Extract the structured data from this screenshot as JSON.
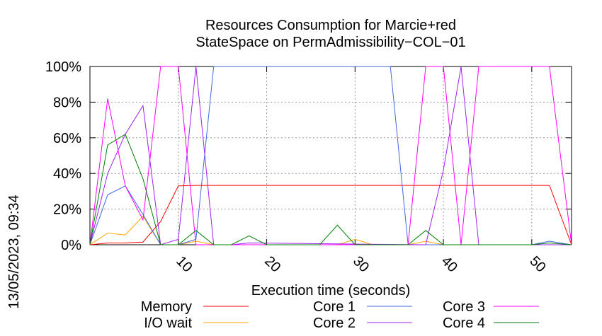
{
  "chart_data": {
    "type": "line",
    "title": [
      "Resources Consumption for Marcie+red",
      "StateSpace on PermAdmissibility−COL−01"
    ],
    "xlabel": "Execution time (seconds)",
    "ylabel": "",
    "xlim": [
      0,
      54.5
    ],
    "ylim": [
      0,
      100
    ],
    "x_ticks": [
      10,
      20,
      30,
      40,
      50
    ],
    "x_tick_labels": [
      "10",
      "20",
      "30",
      "40",
      "50"
    ],
    "y_ticks": [
      0,
      20,
      40,
      60,
      80,
      100
    ],
    "y_tick_labels": [
      "0%",
      "20%",
      "40%",
      "60%",
      "80%",
      "100%"
    ],
    "grid": true,
    "legend_position": "bottom",
    "series": [
      {
        "name": "Memory",
        "color": "#ff0000",
        "x": [
          0,
          2,
          4,
          6,
          8,
          10,
          12,
          14,
          52,
          54.5
        ],
        "y": [
          0,
          1,
          1,
          1.5,
          13,
          33,
          33.3,
          33.3,
          33.3,
          0
        ]
      },
      {
        "name": "I/O wait",
        "color": "#ffa500",
        "x": [
          0,
          2,
          4,
          6,
          8,
          10,
          12,
          14,
          16,
          28,
          30,
          32,
          36,
          38,
          40,
          54.5
        ],
        "y": [
          0,
          6.5,
          5.5,
          16,
          0,
          0,
          2,
          0,
          0,
          0,
          3,
          0,
          0,
          2,
          0,
          0
        ]
      },
      {
        "name": "Core 1",
        "color": "#4169e1",
        "x": [
          0,
          2,
          4,
          6,
          8,
          10,
          12,
          14,
          34,
          36,
          50,
          52,
          54.5
        ],
        "y": [
          0,
          28,
          33,
          17,
          0,
          0,
          3,
          100,
          100,
          0,
          0,
          2,
          0
        ]
      },
      {
        "name": "Core 2",
        "color": "#a020f0",
        "x": [
          0,
          2,
          4,
          6,
          8,
          10,
          12,
          14,
          16,
          18,
          38,
          40,
          42,
          44,
          46,
          54.5
        ],
        "y": [
          0,
          40,
          62,
          78,
          0,
          3,
          100,
          0,
          0,
          1,
          0,
          42,
          100,
          0,
          0,
          0
        ]
      },
      {
        "name": "Core 3",
        "color": "#ff00ff",
        "x": [
          0,
          2,
          4,
          6,
          8,
          10,
          12,
          14,
          36,
          38,
          40,
          42,
          44,
          52,
          54.5
        ],
        "y": [
          0,
          82,
          33,
          14,
          100,
          100,
          0,
          0,
          0,
          100,
          100,
          0,
          100,
          100,
          0
        ]
      },
      {
        "name": "Core 4",
        "color": "#008000",
        "x": [
          0,
          2,
          4,
          6,
          8,
          10,
          12,
          14,
          16,
          18,
          20,
          26,
          28,
          30,
          36,
          38,
          40,
          50,
          52,
          54.5
        ],
        "y": [
          0,
          56,
          62,
          37,
          0,
          0,
          8,
          0,
          0,
          5,
          0,
          0,
          11,
          0,
          0,
          8,
          0,
          0,
          1,
          0
        ]
      }
    ]
  },
  "timestamp": "13/05/2023, 09:34"
}
